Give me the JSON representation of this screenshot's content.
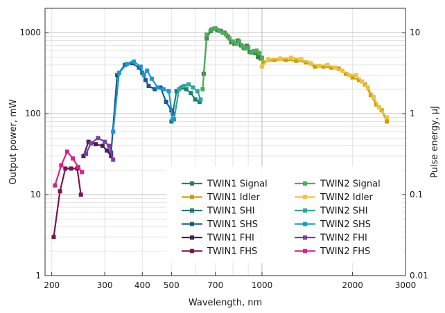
{
  "chart_data": {
    "type": "line",
    "x_scale": "log",
    "y_scale": "log",
    "xlabel": "Wavelength, nm",
    "ylabel": "Output power, mW",
    "y2label": "Pulse energy, µJ",
    "xlim": [
      190,
      3000
    ],
    "ylim": [
      1,
      2000
    ],
    "y2lim": [
      0.01,
      20
    ],
    "grid": true,
    "legend_position": "lower-right",
    "x_ticks": [
      200,
      300,
      400,
      500,
      700,
      1000,
      2000,
      3000
    ],
    "x_tick_labels": [
      "200",
      "300",
      "400",
      "500",
      "700",
      "1000",
      "2000",
      "3000"
    ],
    "y_ticks": [
      1,
      10,
      100,
      1000
    ],
    "y_tick_labels": [
      "1",
      "10",
      "100",
      "1000"
    ],
    "y2_ticks": [
      0.01,
      0.1,
      1,
      10
    ],
    "y2_tick_labels": [
      "0.01",
      "0.1",
      "1",
      "10"
    ],
    "series": [
      {
        "name": "TWIN1 Signal",
        "color": "#3a7d44",
        "x": [
          640,
          655,
          675,
          695,
          710,
          730,
          750,
          770,
          790,
          810,
          830,
          850,
          870,
          890,
          910,
          930,
          950,
          970,
          990
        ],
        "y": [
          310,
          850,
          1050,
          1120,
          1080,
          1050,
          1000,
          900,
          760,
          730,
          800,
          700,
          650,
          690,
          580,
          570,
          560,
          500,
          480
        ]
      },
      {
        "name": "TWIN1 Idler",
        "color": "#c8a20a",
        "x": [
          1010,
          1100,
          1200,
          1300,
          1400,
          1500,
          1600,
          1700,
          1800,
          1900,
          2000,
          2100,
          2200,
          2300,
          2400,
          2500,
          2600
        ],
        "y": [
          430,
          460,
          460,
          450,
          430,
          380,
          380,
          370,
          360,
          310,
          280,
          260,
          230,
          170,
          130,
          110,
          80
        ]
      },
      {
        "name": "TWIN1 SHI",
        "color": "#1f7a7a",
        "x": [
          500,
          520,
          540,
          560,
          580,
          600,
          620
        ],
        "y": [
          80,
          190,
          210,
          200,
          180,
          150,
          140
        ]
      },
      {
        "name": "TWIN1 SHS",
        "color": "#1b5a8a",
        "x": [
          315,
          330,
          350,
          370,
          390,
          400,
          410,
          420,
          440,
          460,
          480,
          500,
          505
        ],
        "y": [
          33,
          300,
          400,
          420,
          370,
          320,
          260,
          220,
          200,
          210,
          140,
          110,
          100
        ]
      },
      {
        "name": "TWIN1 FHI",
        "color": "#4a1d5e",
        "x": [
          255,
          265,
          280,
          295,
          305,
          315
        ],
        "y": [
          30,
          45,
          42,
          40,
          35,
          30
        ]
      },
      {
        "name": "TWIN1 FHS",
        "color": "#7a1450",
        "x": [
          203,
          213,
          222,
          232,
          243,
          250
        ],
        "y": [
          3,
          11,
          21,
          21,
          21,
          10
        ]
      },
      {
        "name": "TWIN2 Signal",
        "color": "#4cab5c",
        "x": [
          635,
          655,
          680,
          700,
          720,
          740,
          760,
          780,
          800,
          820,
          840,
          860,
          880,
          900,
          920,
          940,
          960,
          980,
          1000
        ],
        "y": [
          200,
          950,
          1100,
          1130,
          1060,
          1000,
          950,
          850,
          780,
          730,
          780,
          680,
          640,
          660,
          570,
          590,
          600,
          560,
          490
        ]
      },
      {
        "name": "TWIN2 Idler",
        "color": "#f0c040",
        "x": [
          1000,
          1050,
          1150,
          1250,
          1350,
          1450,
          1550,
          1650,
          1750,
          1850,
          1950,
          2050,
          2150,
          2250,
          2350,
          2450,
          2600
        ],
        "y": [
          380,
          470,
          480,
          490,
          470,
          420,
          390,
          400,
          370,
          340,
          300,
          300,
          250,
          210,
          160,
          120,
          90
        ]
      },
      {
        "name": "TWIN2 SHI",
        "color": "#2aaa9c",
        "x": [
          510,
          530,
          550,
          570,
          590,
          610,
          625
        ],
        "y": [
          85,
          200,
          220,
          230,
          210,
          190,
          150
        ]
      },
      {
        "name": "TWIN2 SHS",
        "color": "#1b96d0",
        "x": [
          320,
          335,
          355,
          375,
          395,
          405,
          415,
          430,
          450,
          470,
          490,
          505
        ],
        "y": [
          60,
          320,
          410,
          440,
          380,
          300,
          340,
          270,
          210,
          200,
          190,
          85
        ]
      },
      {
        "name": "TWIN2 FHI",
        "color": "#7b3fa0",
        "x": [
          260,
          270,
          285,
          300,
          310,
          320
        ],
        "y": [
          32,
          43,
          50,
          45,
          40,
          27
        ]
      },
      {
        "name": "TWIN2 FHS",
        "color": "#d6228a",
        "x": [
          205,
          215,
          225,
          235,
          245,
          252
        ],
        "y": [
          13,
          23,
          34,
          28,
          22,
          19
        ]
      }
    ]
  }
}
